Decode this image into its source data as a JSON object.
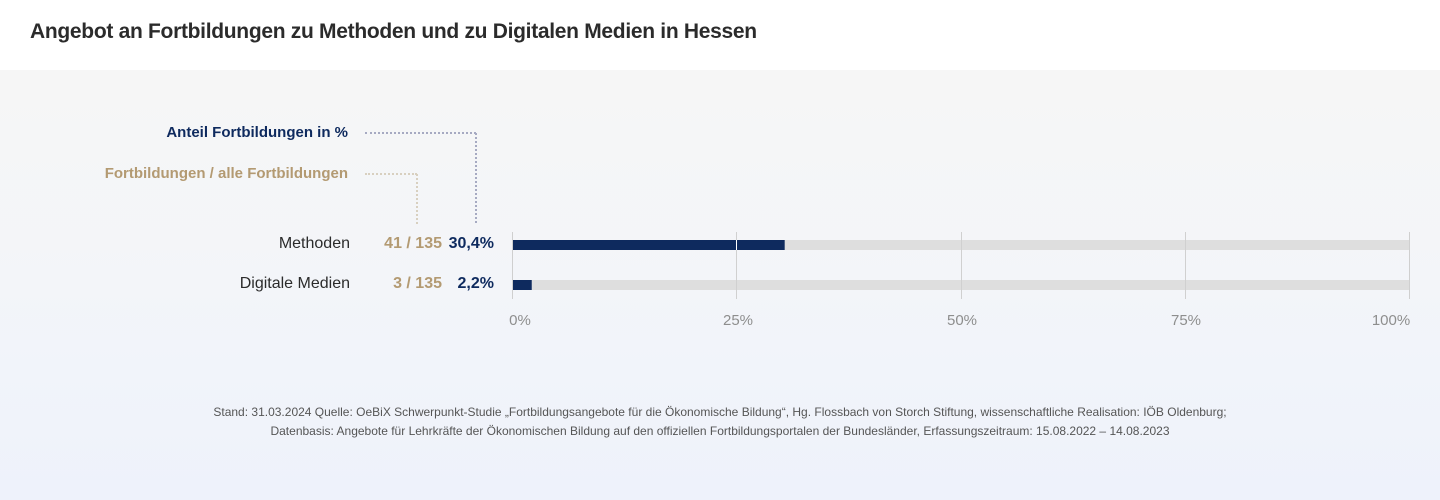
{
  "header": {
    "title": "Angebot an Fortbildungen zu Methoden und zu Digitalen Medien in Hessen"
  },
  "legend": {
    "percent_label": "Anteil Fortbildungen  in %",
    "count_label": "Fortbildungen / alle Fortbildungen"
  },
  "colors": {
    "bar": "#0e2a5e",
    "track": "#dedede",
    "count": "#b39a72",
    "grid": "#d0d0d0"
  },
  "chart_data": {
    "type": "bar",
    "orientation": "horizontal",
    "title": "Angebot an Fortbildungen zu Methoden und zu Digitalen Medien in Hessen",
    "categories": [
      "Methoden",
      "Digitale Medien"
    ],
    "values": [
      30.4,
      2.2
    ],
    "counts": [
      "41 / 135",
      "3 / 135"
    ],
    "value_labels": [
      "30,4%",
      "2,2%"
    ],
    "xlim": [
      0,
      100
    ],
    "xticks": [
      0,
      25,
      50,
      75,
      100
    ],
    "xtick_labels": [
      "0%",
      "25%",
      "50%",
      "75%",
      "100%"
    ],
    "grid": true,
    "xlabel": "",
    "ylabel": ""
  },
  "source": {
    "line1": "Stand: 31.03.2024 Quelle: OeBiX Schwerpunkt-Studie „Fortbildungsangebote für die Ökonomische Bildung“, Hg. Flossbach von Storch Stiftung, wissenschaftliche Realisation: IÖB Oldenburg;",
    "line2": "Datenbasis: Angebote für Lehrkräfte der Ökonomischen Bildung auf den offiziellen Fortbildungsportalen der Bundesländer, Erfassungszeitraum: 15.08.2022 – 14.08.2023"
  }
}
